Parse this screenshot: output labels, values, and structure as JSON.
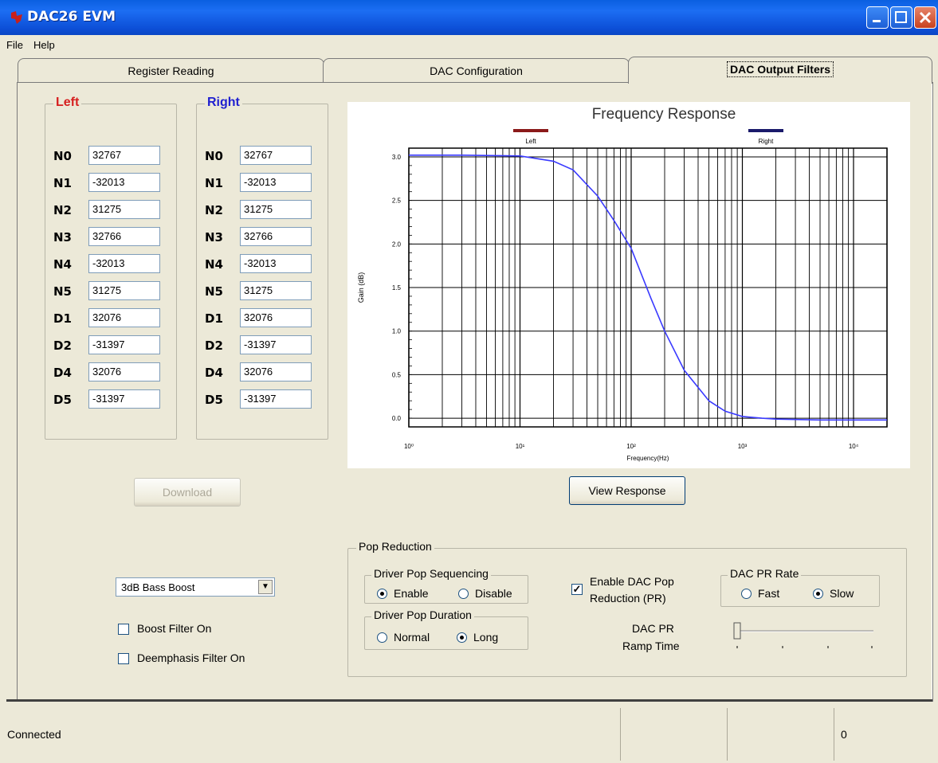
{
  "window": {
    "title": "DAC26 EVM"
  },
  "menu": {
    "items": [
      "File",
      "Help"
    ]
  },
  "tabs": [
    {
      "label": "Register Reading"
    },
    {
      "label": "DAC Configuration"
    },
    {
      "label": "DAC Output Filters"
    }
  ],
  "left": {
    "title": "Left",
    "color": "#d62020",
    "rows": [
      {
        "label": "N0",
        "value": "32767"
      },
      {
        "label": "N1",
        "value": "-32013"
      },
      {
        "label": "N2",
        "value": "31275"
      },
      {
        "label": "N3",
        "value": "32766"
      },
      {
        "label": "N4",
        "value": "-32013"
      },
      {
        "label": "N5",
        "value": "31275"
      },
      {
        "label": "D1",
        "value": "32076"
      },
      {
        "label": "D2",
        "value": "-31397"
      },
      {
        "label": "D4",
        "value": "32076"
      },
      {
        "label": "D5",
        "value": "-31397"
      }
    ]
  },
  "right": {
    "title": "Right",
    "color": "#2020d0",
    "rows": [
      {
        "label": "N0",
        "value": "32767"
      },
      {
        "label": "N1",
        "value": "-32013"
      },
      {
        "label": "N2",
        "value": "31275"
      },
      {
        "label": "N3",
        "value": "32766"
      },
      {
        "label": "N4",
        "value": "-32013"
      },
      {
        "label": "N5",
        "value": "31275"
      },
      {
        "label": "D1",
        "value": "32076"
      },
      {
        "label": "D2",
        "value": "-31397"
      },
      {
        "label": "D4",
        "value": "32076"
      },
      {
        "label": "D5",
        "value": "-31397"
      }
    ]
  },
  "buttons": {
    "download": "Download",
    "view_response": "View Response"
  },
  "filter": {
    "selected": "3dB Bass Boost",
    "boost_label": "Boost Filter On",
    "boost_checked": false,
    "deemphasis_label": "Deemphasis Filter On",
    "deemphasis_checked": false
  },
  "pop": {
    "title": "Pop Reduction",
    "sequencing": {
      "title": "Driver Pop Sequencing",
      "options": [
        "Enable",
        "Disable"
      ],
      "selected": "Enable"
    },
    "duration": {
      "title": "Driver Pop Duration",
      "options": [
        "Normal",
        "Long"
      ],
      "selected": "Long"
    },
    "enable_pr": {
      "label_1": "Enable DAC  Pop",
      "label_2": "Reduction (PR)",
      "checked": true
    },
    "pr_rate": {
      "title": "DAC PR Rate",
      "options": [
        "Fast",
        "Slow"
      ],
      "selected": "Slow"
    },
    "ramp": {
      "label_1": "DAC PR",
      "label_2": "Ramp Time",
      "level": 0
    }
  },
  "status": {
    "left": "Connected",
    "right": "0"
  },
  "chart_data": {
    "type": "line",
    "title": "Frequency Response",
    "xlabel": "Frequency(Hz)",
    "ylabel": "Gain (dB)",
    "x_scale": "log",
    "xlim": [
      1,
      20000
    ],
    "ylim": [
      -0.1,
      3.1
    ],
    "x_ticks": [
      "10⁰",
      "10¹",
      "10²",
      "10³",
      "10⁴"
    ],
    "y_ticks": [
      "0.0",
      "0.5",
      "1.0",
      "1.5",
      "2.0",
      "2.5",
      "3.0"
    ],
    "grid": true,
    "legend": [
      "Left",
      "Right"
    ],
    "legend_colors": [
      "#8b1a1a",
      "#1a1a6b"
    ],
    "series": [
      {
        "name": "Right",
        "color": "#3a3aff",
        "x": [
          1,
          3,
          10,
          20,
          30,
          50,
          70,
          100,
          150,
          200,
          300,
          500,
          700,
          1000,
          1500,
          2000,
          5000,
          10000,
          20000
        ],
        "y": [
          3.02,
          3.02,
          3.01,
          2.95,
          2.85,
          2.55,
          2.27,
          1.95,
          1.38,
          1.0,
          0.55,
          0.2,
          0.08,
          0.02,
          0.0,
          -0.01,
          -0.02,
          -0.02,
          -0.02
        ]
      }
    ]
  }
}
